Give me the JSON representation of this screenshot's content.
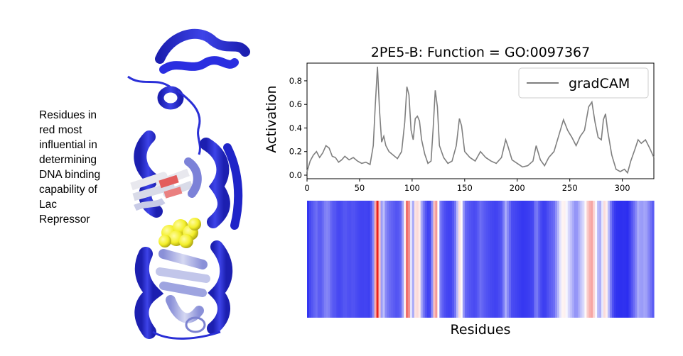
{
  "caption": {
    "lines": [
      "Residues in",
      "red most",
      "influential in",
      "determining",
      "DNA binding",
      "capability of",
      "Lac",
      "Repressor"
    ]
  },
  "colors": {
    "line": "#7f7f7f",
    "heat_low": "#2a2cf0",
    "heat_mid": "#ffffff",
    "heat_high": "#e8231d",
    "ligand": "#f3ef2a"
  },
  "chart_data": {
    "type": "line",
    "title": "2PE5-B: Function = GO:0097367",
    "xlabel": "",
    "ylabel": "Activation",
    "xlim": [
      0,
      330
    ],
    "ylim": [
      -0.03,
      0.95
    ],
    "xticks": [
      0,
      50,
      100,
      150,
      200,
      250,
      300
    ],
    "yticks": [
      0.0,
      0.2,
      0.4,
      0.6,
      0.8
    ],
    "ytick_labels": [
      "0.0",
      "0.2",
      "0.4",
      "0.6",
      "0.8"
    ],
    "grid": false,
    "legend": {
      "position": "top-right",
      "entries": [
        "gradCAM"
      ]
    },
    "series": [
      {
        "name": "gradCAM",
        "points": [
          [
            0,
            0.03
          ],
          [
            3,
            0.12
          ],
          [
            6,
            0.17
          ],
          [
            9,
            0.2
          ],
          [
            12,
            0.15
          ],
          [
            15,
            0.19
          ],
          [
            18,
            0.25
          ],
          [
            21,
            0.23
          ],
          [
            24,
            0.16
          ],
          [
            27,
            0.15
          ],
          [
            30,
            0.11
          ],
          [
            33,
            0.13
          ],
          [
            36,
            0.16
          ],
          [
            40,
            0.13
          ],
          [
            44,
            0.15
          ],
          [
            48,
            0.12
          ],
          [
            52,
            0.1
          ],
          [
            56,
            0.11
          ],
          [
            60,
            0.09
          ],
          [
            63,
            0.25
          ],
          [
            65,
            0.6
          ],
          [
            67,
            0.92
          ],
          [
            69,
            0.55
          ],
          [
            71,
            0.28
          ],
          [
            73,
            0.33
          ],
          [
            75,
            0.25
          ],
          [
            78,
            0.2
          ],
          [
            82,
            0.17
          ],
          [
            86,
            0.14
          ],
          [
            90,
            0.2
          ],
          [
            93,
            0.45
          ],
          [
            95,
            0.75
          ],
          [
            97,
            0.68
          ],
          [
            99,
            0.38
          ],
          [
            101,
            0.3
          ],
          [
            103,
            0.48
          ],
          [
            105,
            0.5
          ],
          [
            107,
            0.46
          ],
          [
            109,
            0.3
          ],
          [
            112,
            0.18
          ],
          [
            115,
            0.1
          ],
          [
            118,
            0.12
          ],
          [
            120,
            0.4
          ],
          [
            122,
            0.72
          ],
          [
            124,
            0.58
          ],
          [
            126,
            0.25
          ],
          [
            130,
            0.15
          ],
          [
            134,
            0.1
          ],
          [
            138,
            0.12
          ],
          [
            142,
            0.25
          ],
          [
            145,
            0.48
          ],
          [
            147,
            0.42
          ],
          [
            150,
            0.2
          ],
          [
            155,
            0.15
          ],
          [
            160,
            0.12
          ],
          [
            165,
            0.2
          ],
          [
            170,
            0.15
          ],
          [
            175,
            0.12
          ],
          [
            180,
            0.1
          ],
          [
            185,
            0.15
          ],
          [
            189,
            0.3
          ],
          [
            191,
            0.25
          ],
          [
            195,
            0.13
          ],
          [
            200,
            0.1
          ],
          [
            205,
            0.07
          ],
          [
            210,
            0.08
          ],
          [
            215,
            0.12
          ],
          [
            218,
            0.25
          ],
          [
            222,
            0.13
          ],
          [
            226,
            0.08
          ],
          [
            230,
            0.15
          ],
          [
            235,
            0.2
          ],
          [
            240,
            0.35
          ],
          [
            244,
            0.47
          ],
          [
            248,
            0.38
          ],
          [
            252,
            0.32
          ],
          [
            256,
            0.25
          ],
          [
            260,
            0.33
          ],
          [
            264,
            0.38
          ],
          [
            268,
            0.58
          ],
          [
            271,
            0.62
          ],
          [
            274,
            0.45
          ],
          [
            277,
            0.32
          ],
          [
            280,
            0.3
          ],
          [
            282,
            0.47
          ],
          [
            284,
            0.52
          ],
          [
            286,
            0.38
          ],
          [
            290,
            0.17
          ],
          [
            294,
            0.05
          ],
          [
            298,
            0.03
          ],
          [
            302,
            0.05
          ],
          [
            305,
            0.02
          ],
          [
            308,
            0.12
          ],
          [
            312,
            0.22
          ],
          [
            315,
            0.3
          ],
          [
            318,
            0.27
          ],
          [
            322,
            0.3
          ],
          [
            326,
            0.23
          ],
          [
            330,
            0.15
          ]
        ]
      }
    ],
    "heatmap": {
      "xlabel": "Residues",
      "values": "gradCAM"
    }
  }
}
